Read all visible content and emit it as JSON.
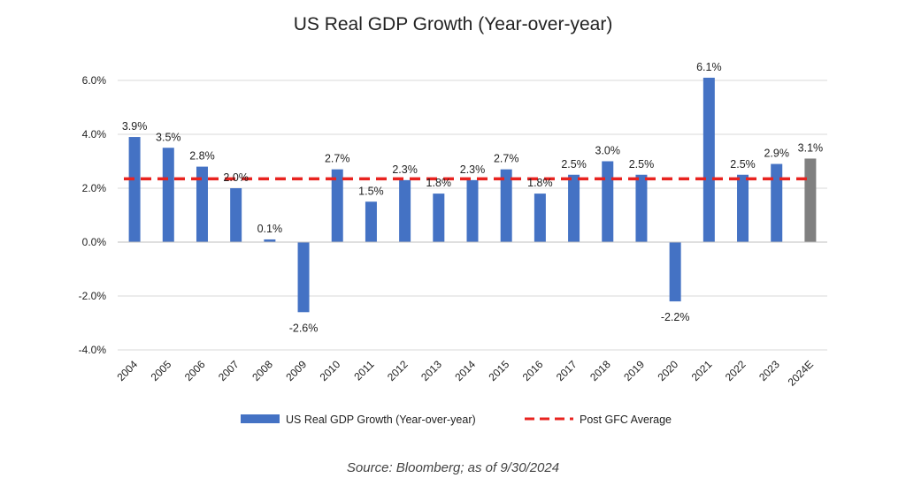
{
  "chart_data": {
    "type": "bar",
    "title": "US Real GDP Growth (Year-over-year)",
    "categories": [
      "2004",
      "2005",
      "2006",
      "2007",
      "2008",
      "2009",
      "2010",
      "2011",
      "2012",
      "2013",
      "2014",
      "2015",
      "2016",
      "2017",
      "2018",
      "2019",
      "2020",
      "2021",
      "2022",
      "2023",
      "2024E"
    ],
    "series": [
      {
        "name": "US Real GDP Growth (Year-over-year)",
        "values": [
          3.9,
          3.5,
          2.8,
          2.0,
          0.1,
          -2.6,
          2.7,
          1.5,
          2.3,
          1.8,
          2.3,
          2.7,
          1.8,
          2.5,
          3.0,
          2.5,
          -2.2,
          6.1,
          2.5,
          2.9,
          3.1
        ],
        "data_labels": [
          "3.9%",
          "3.5%",
          "2.8%",
          "2.0%",
          "0.1%",
          "-2.6%",
          "2.7%",
          "1.5%",
          "2.3%",
          "1.8%",
          "2.3%",
          "2.7%",
          "1.8%",
          "2.5%",
          "3.0%",
          "2.5%",
          "-2.2%",
          "6.1%",
          "2.5%",
          "2.9%",
          "3.1%"
        ],
        "color": "#4472c4",
        "estimate_color": "#808080",
        "estimate_index": 20
      }
    ],
    "reference_line": {
      "name": "Post GFC Average",
      "value": 2.35,
      "color": "#e8231f",
      "style": "dashed"
    },
    "ylim": [
      -4,
      6
    ],
    "yticks": [
      6,
      4,
      2,
      0,
      -2,
      -4
    ],
    "ytick_labels": [
      "6.0%",
      "4.0%",
      "2.0%",
      "0.0%",
      "-2.0%",
      "-4.0%"
    ],
    "grid": true,
    "legend": [
      "US Real GDP Growth (Year-over-year)",
      "Post GFC Average"
    ],
    "legend_position": "bottom",
    "xlabel": "",
    "ylabel": ""
  },
  "source": "Source: Bloomberg; as of 9/30/2024"
}
